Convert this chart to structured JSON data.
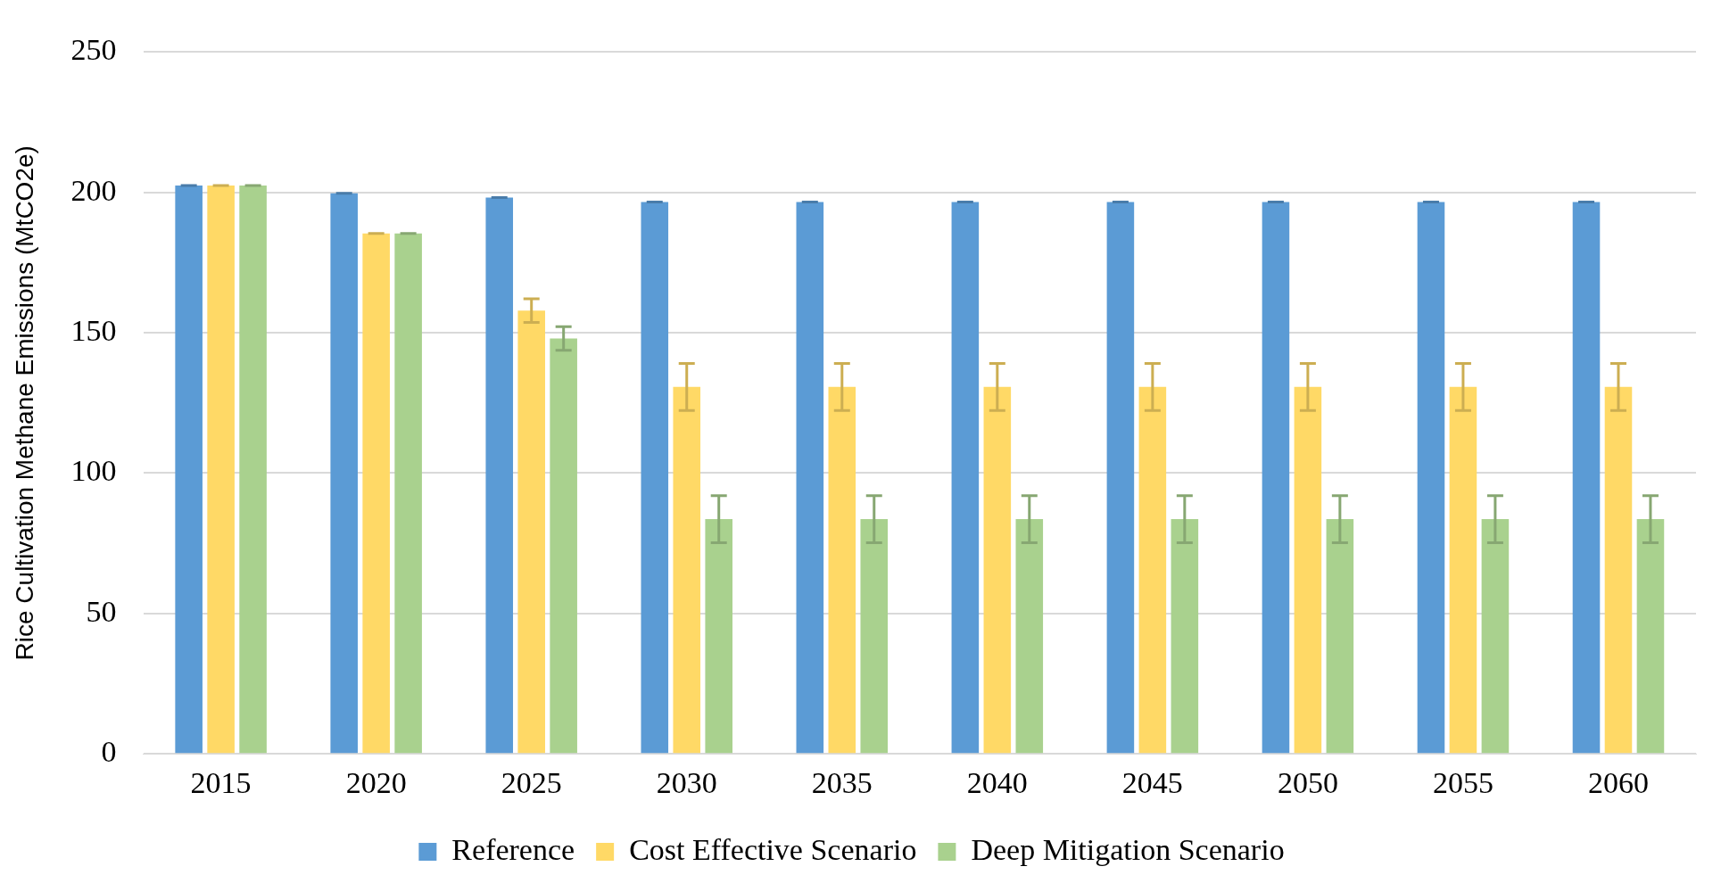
{
  "chart_data": {
    "type": "bar",
    "ylabel": "Rice Cultivation Methane Emissions (MtCO2e)",
    "categories": [
      "2015",
      "2020",
      "2025",
      "2030",
      "2035",
      "2040",
      "2045",
      "2050",
      "2055",
      "2060"
    ],
    "series": [
      {
        "name": "Reference",
        "color": "#5b9bd5",
        "values": [
          202.5,
          199.7,
          198.2,
          196.6,
          196.6,
          196.6,
          196.6,
          196.6,
          196.6,
          196.6
        ],
        "errors": [
          0,
          0,
          0,
          0,
          0,
          0,
          0,
          0,
          0,
          0
        ]
      },
      {
        "name": "Cost Effective Scenario",
        "color": "#ffd966",
        "values": [
          202.5,
          185.4,
          157.9,
          130.7,
          130.7,
          130.7,
          130.7,
          130.7,
          130.7,
          130.7
        ],
        "errors": [
          0,
          0,
          4.2,
          8.4,
          8.4,
          8.4,
          8.4,
          8.4,
          8.4,
          8.4
        ]
      },
      {
        "name": "Deep Mitigation Scenario",
        "color": "#a9d18e",
        "values": [
          202.5,
          185.4,
          148,
          83.6,
          83.6,
          83.6,
          83.6,
          83.6,
          83.6,
          83.6
        ],
        "errors": [
          0,
          0,
          4.2,
          8.4,
          8.4,
          8.4,
          8.4,
          8.4,
          8.4,
          8.4
        ]
      }
    ],
    "ylim": [
      0,
      250
    ],
    "yticks": [
      0,
      50,
      100,
      150,
      200,
      250
    ],
    "grid": "y",
    "legend": "bottom"
  }
}
